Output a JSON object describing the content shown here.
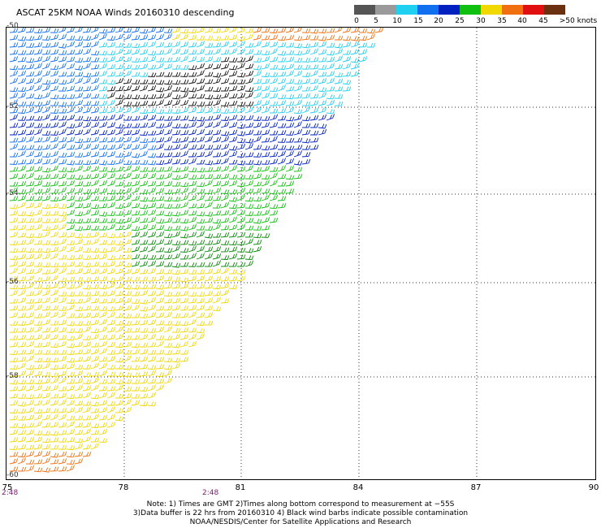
{
  "title": "ASCAT 25KM NOAA Winds 20160310 descending",
  "legend": {
    "labels": [
      "0",
      "5",
      "10",
      "15",
      "20",
      "25",
      "30",
      "35",
      "40",
      "45",
      ">50 knots"
    ],
    "colors": [
      "#555555",
      "#9a9a9a",
      "#20d0f0",
      "#1070f0",
      "#0020c0",
      "#10c010",
      "#f0d800",
      "#f07010",
      "#e01010",
      "#6a3010",
      "#e010e0",
      "#4a0090"
    ]
  },
  "x_ticks": [
    "75",
    "78",
    "81",
    "84",
    "87",
    "90"
  ],
  "y_ticks": [
    "-50",
    "-52",
    "-54",
    "-56",
    "-58",
    "-60"
  ],
  "times": [
    "2:48",
    "2:48"
  ],
  "notes": [
    "Note: 1) Times are GMT 2)Times along bottom correspond to measurement at −55S",
    "3)Data buffer is 22 hrs from 20160310 4) Black wind barbs indicate possible contamination",
    "NOAA/NESDIS/Center for Satellite Applications and Research"
  ]
}
